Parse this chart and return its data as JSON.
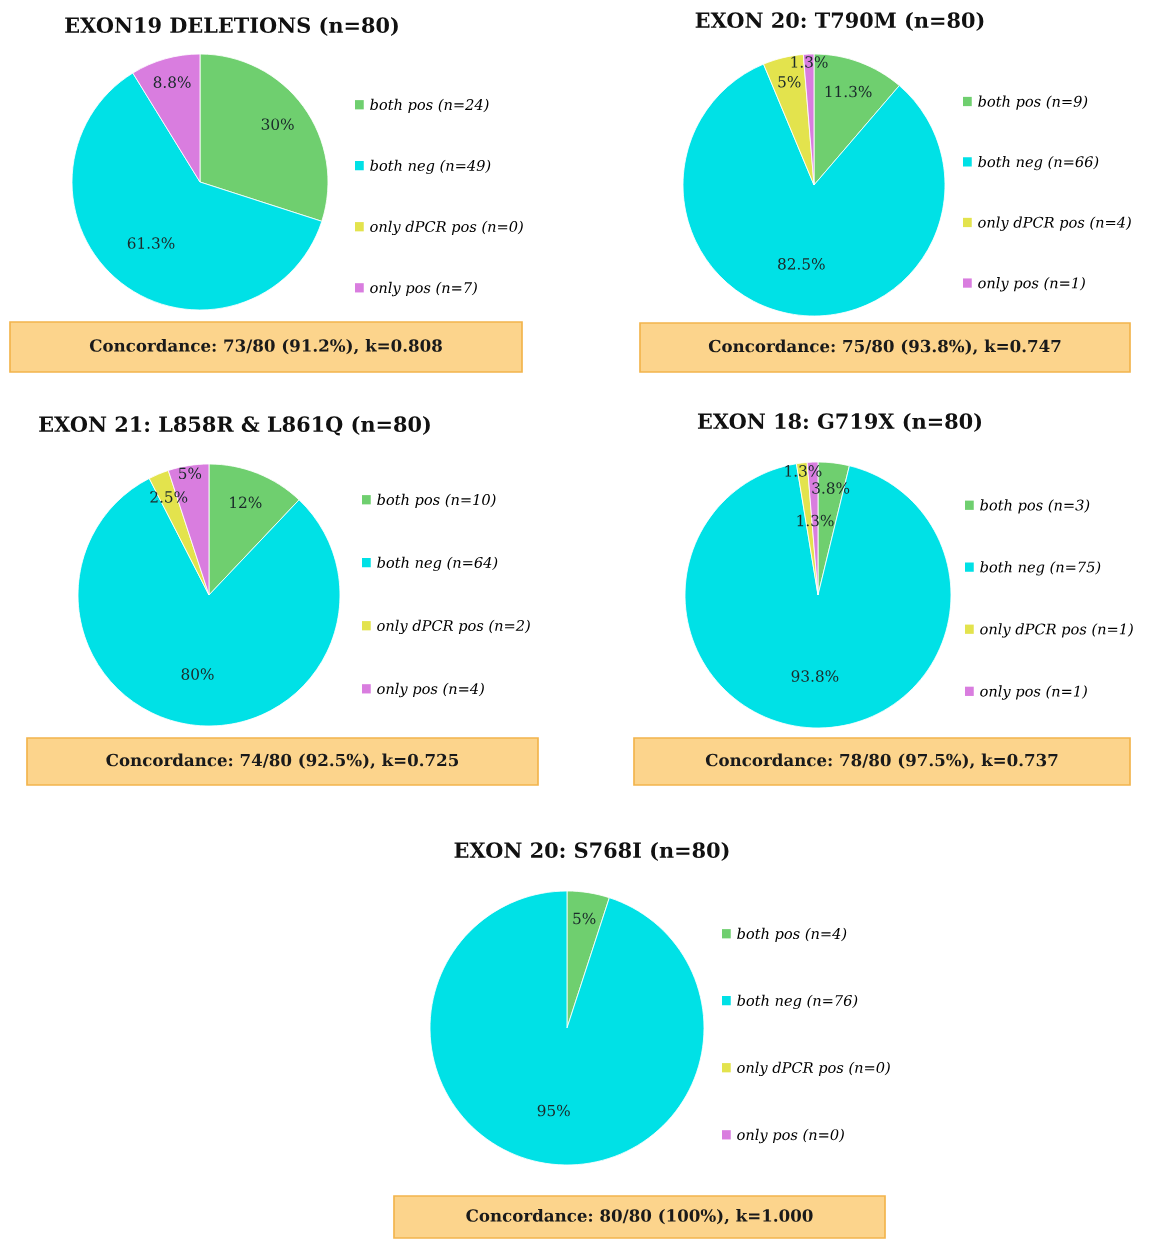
{
  "chart_data": [
    {
      "type": "pie",
      "title": "EXON19 DELETIONS (n=80)",
      "categories": [
        "both pos (n=24)",
        "both neg (n=49)",
        "only dPCR pos (n=0)",
        "only pos (n=7)"
      ],
      "values": [
        30,
        61.3,
        0,
        8.8
      ],
      "value_labels": [
        "30%",
        "61.3%",
        null,
        "8.8%"
      ],
      "colors": [
        "#6fcf6f",
        "#00e1e6",
        "#e3e34d",
        "#d97ddf"
      ],
      "legend": "right",
      "annotations": [
        "Concordance: 73/80 (91.2%), k=0.808"
      ]
    },
    {
      "type": "pie",
      "title": "EXON 20: T790M (n=80)",
      "categories": [
        "both pos (n=9)",
        "both neg (n=66)",
        "only dPCR pos (n=4)",
        "only pos (n=1)"
      ],
      "values": [
        11.3,
        82.5,
        5,
        1.3
      ],
      "value_labels": [
        "11.3%",
        "82.5%",
        "5%",
        "1.3%"
      ],
      "colors": [
        "#6fcf6f",
        "#00e1e6",
        "#e3e34d",
        "#d97ddf"
      ],
      "legend": "right",
      "annotations": [
        "Concordance: 75/80 (93.8%), k=0.747"
      ]
    },
    {
      "type": "pie",
      "title": "EXON 21: L858R & L861Q (n=80)",
      "categories": [
        "both pos (n=10)",
        "both neg (n=64)",
        "only dPCR pos (n=2)",
        "only pos (n=4)"
      ],
      "values": [
        12,
        80,
        2.5,
        5
      ],
      "value_labels": [
        "12%",
        "80%",
        "2.5%",
        "5%"
      ],
      "colors": [
        "#6fcf6f",
        "#00e1e6",
        "#e3e34d",
        "#d97ddf"
      ],
      "legend": "right",
      "annotations": [
        "Concordance: 74/80 (92.5%), k=0.725"
      ]
    },
    {
      "type": "pie",
      "title": "EXON 18: G719X (n=80)",
      "categories": [
        "both pos (n=3)",
        "both neg (n=75)",
        "only dPCR pos (n=1)",
        "only pos (n=1)"
      ],
      "values": [
        3.8,
        93.8,
        1.3,
        1.3
      ],
      "value_labels": [
        "3.8%",
        "93.8%",
        "1.3%",
        "1.3%"
      ],
      "colors": [
        "#6fcf6f",
        "#00e1e6",
        "#e3e34d",
        "#d97ddf"
      ],
      "legend": "right",
      "annotations": [
        "Concordance: 78/80 (97.5%), k=0.737"
      ]
    },
    {
      "type": "pie",
      "title": "EXON 20: S768I (n=80)",
      "categories": [
        "both pos (n=4)",
        "both neg (n=76)",
        "only dPCR pos (n=0)",
        "only pos (n=0)"
      ],
      "values": [
        5,
        95,
        0,
        0
      ],
      "value_labels": [
        "5%",
        "95%",
        null,
        null
      ],
      "colors": [
        "#6fcf6f",
        "#00e1e6",
        "#e3e34d",
        "#d97ddf"
      ],
      "legend": "right",
      "annotations": [
        "Concordance: 80/80 (100%), k=1.000"
      ]
    }
  ]
}
